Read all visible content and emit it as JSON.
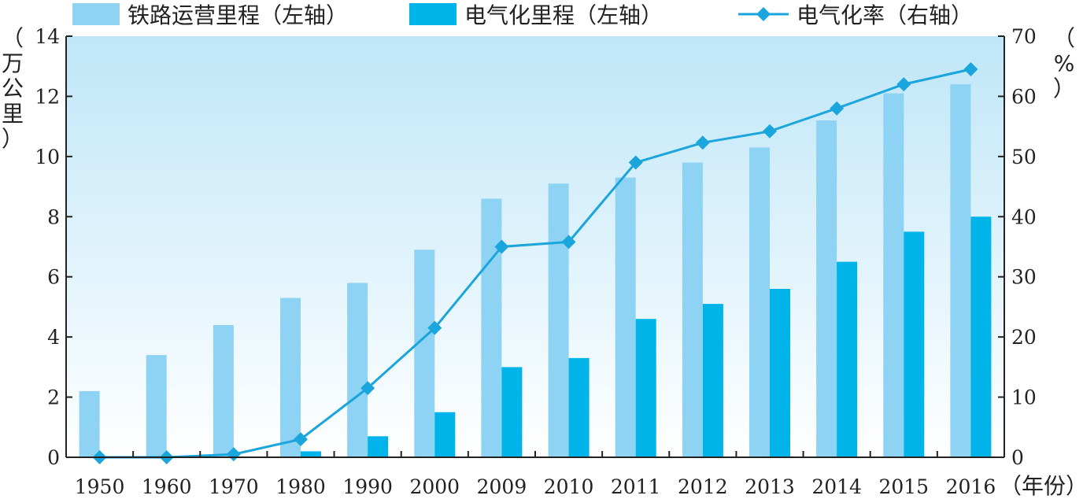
{
  "chart_data": {
    "type": "bar",
    "categories": [
      "1950",
      "1960",
      "1970",
      "1980",
      "1990",
      "2000",
      "2009",
      "2010",
      "2011",
      "2012",
      "2013",
      "2014",
      "2015",
      "2016"
    ],
    "x_unit_label": "（年份）",
    "left_axis": {
      "label": "（万公里）",
      "ylim": [
        0,
        14
      ],
      "ticks": [
        0,
        2,
        4,
        6,
        8,
        10,
        12,
        14
      ]
    },
    "right_axis": {
      "label": "（%）",
      "ylim": [
        0,
        70
      ],
      "ticks": [
        0,
        10,
        20,
        30,
        40,
        50,
        60,
        70
      ]
    },
    "series": [
      {
        "name": "铁路运营里程（左轴）",
        "type": "bar",
        "axis": "left",
        "color": "#8fd3f4",
        "values": [
          2.2,
          3.4,
          4.4,
          5.3,
          5.8,
          6.9,
          8.6,
          9.1,
          9.3,
          9.8,
          10.3,
          11.2,
          12.1,
          12.4
        ]
      },
      {
        "name": "电气化里程（左轴）",
        "type": "bar",
        "axis": "left",
        "color": "#00b3e9",
        "values": [
          0,
          0,
          0,
          0.2,
          0.7,
          1.5,
          3.0,
          3.3,
          4.6,
          5.1,
          5.6,
          6.5,
          7.5,
          8.0
        ]
      },
      {
        "name": "电气化率（右轴）",
        "type": "line",
        "axis": "right",
        "color": "#1aa5dc",
        "values": [
          0,
          0,
          0.5,
          3,
          11.5,
          21.5,
          35,
          35.8,
          49,
          52.3,
          54.2,
          58,
          62,
          64.5
        ]
      }
    ],
    "grid": false,
    "legend_position": "top"
  }
}
